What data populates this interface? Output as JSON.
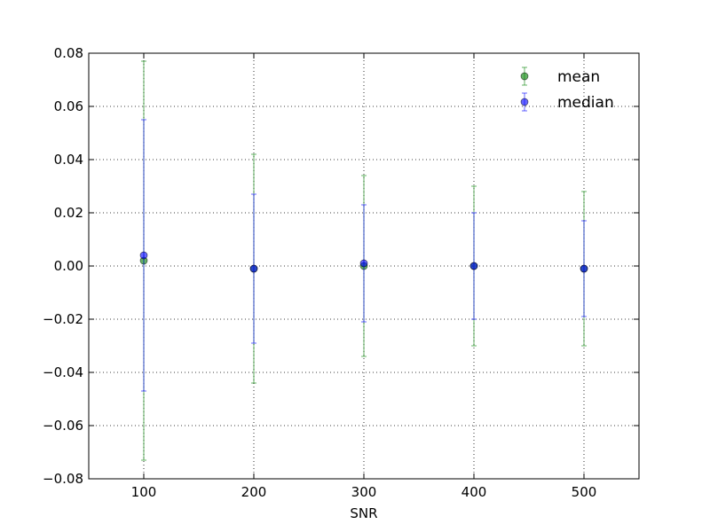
{
  "chart_data": {
    "type": "scatter",
    "title": "",
    "xlabel": "SNR",
    "ylabel": "",
    "xlim": [
      50,
      550
    ],
    "ylim": [
      -0.08,
      0.08
    ],
    "xticks": [
      100,
      200,
      300,
      400,
      500
    ],
    "xtick_labels": [
      "100",
      "200",
      "300",
      "400",
      "500"
    ],
    "yticks": [
      -0.08,
      -0.06,
      -0.04,
      -0.02,
      0.0,
      0.02,
      0.04,
      0.06,
      0.08
    ],
    "ytick_labels": [
      "−0.08",
      "−0.06",
      "−0.04",
      "−0.02",
      "0.00",
      "0.02",
      "0.04",
      "0.06",
      "0.08"
    ],
    "grid": true,
    "legend_position": "top-right",
    "x": [
      100,
      200,
      300,
      400,
      500
    ],
    "series": [
      {
        "name": "mean",
        "color": "#008000",
        "values": [
          0.002,
          -0.001,
          0.0,
          0.0,
          -0.001
        ],
        "err_low": [
          0.075,
          0.043,
          0.034,
          0.03,
          0.029
        ],
        "err_high": [
          0.075,
          0.043,
          0.034,
          0.03,
          0.029
        ]
      },
      {
        "name": "median",
        "color": "#0000ff",
        "values": [
          0.004,
          -0.001,
          0.001,
          0.0,
          -0.001
        ],
        "err_low": [
          0.051,
          0.028,
          0.022,
          0.02,
          0.018
        ],
        "err_high": [
          0.051,
          0.028,
          0.022,
          0.02,
          0.018
        ]
      }
    ]
  }
}
